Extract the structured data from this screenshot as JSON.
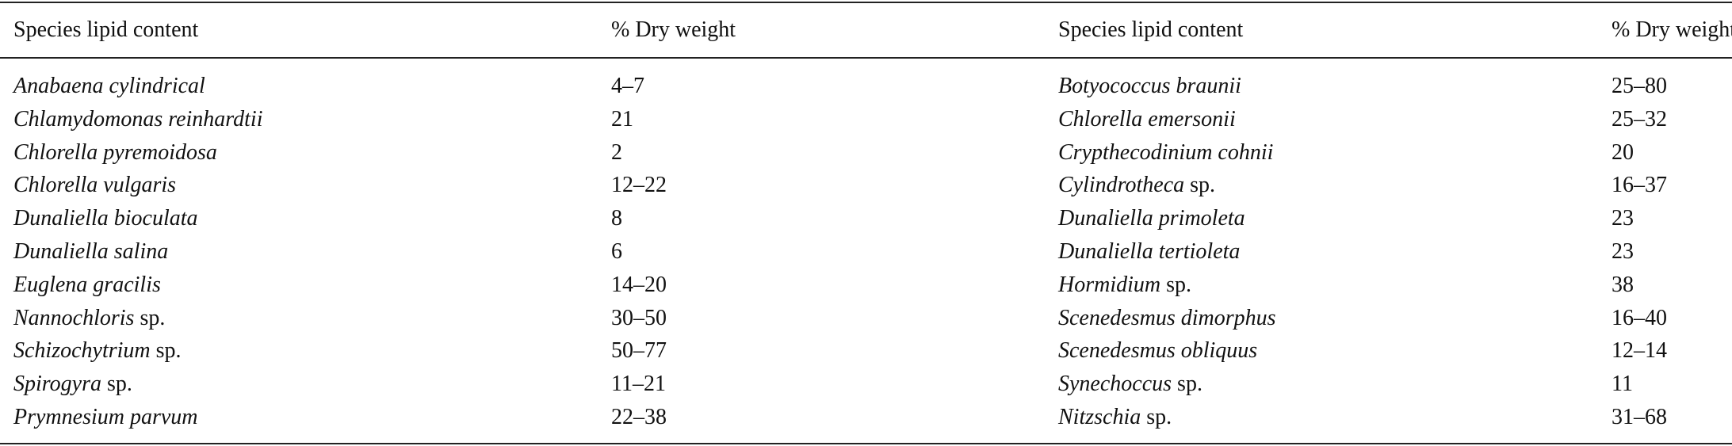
{
  "table": {
    "header": [
      "Species lipid content",
      "% Dry weight",
      "Species lipid content",
      "% Dry weight"
    ],
    "rows": [
      [
        {
          "name": "Anabaena cylindrical"
        },
        "4–7",
        {
          "name": "Botyococcus braunii"
        },
        "25–80"
      ],
      [
        {
          "name": "Chlamydomonas reinhardtii"
        },
        "21",
        {
          "name": "Chlorella emersonii"
        },
        "25–32"
      ],
      [
        {
          "name": "Chlorella pyremoidosa"
        },
        "2",
        {
          "name": "Crypthecodinium cohnii"
        },
        "20"
      ],
      [
        {
          "name": "Chlorella vulgaris"
        },
        "12–22",
        {
          "name": "Cylindrotheca",
          "suffix": "sp."
        },
        "16–37"
      ],
      [
        {
          "name": "Dunaliella bioculata"
        },
        "8",
        {
          "name": "Dunaliella primoleta"
        },
        "23"
      ],
      [
        {
          "name": "Dunaliella salina"
        },
        "6",
        {
          "name": "Dunaliella tertioleta"
        },
        "23"
      ],
      [
        {
          "name": "Euglena gracilis"
        },
        "14–20",
        {
          "name": "Hormidium",
          "suffix": "sp."
        },
        "38"
      ],
      [
        {
          "name": "Nannochloris",
          "suffix": "sp."
        },
        "30–50",
        {
          "name": "Scenedesmus dimorphus"
        },
        "16–40"
      ],
      [
        {
          "name": "Schizochytrium",
          "suffix": "sp."
        },
        "50–77",
        {
          "name": "Scenedesmus obliquus"
        },
        "12–14"
      ],
      [
        {
          "name": "Spirogyra",
          "suffix": "sp."
        },
        "11–21",
        {
          "name": "Synechoccus",
          "suffix": "sp."
        },
        "11"
      ],
      [
        {
          "name": "Prymnesium parvum"
        },
        "22–38",
        {
          "name": "Nitzschia",
          "suffix": "sp."
        },
        "31–68"
      ]
    ]
  }
}
